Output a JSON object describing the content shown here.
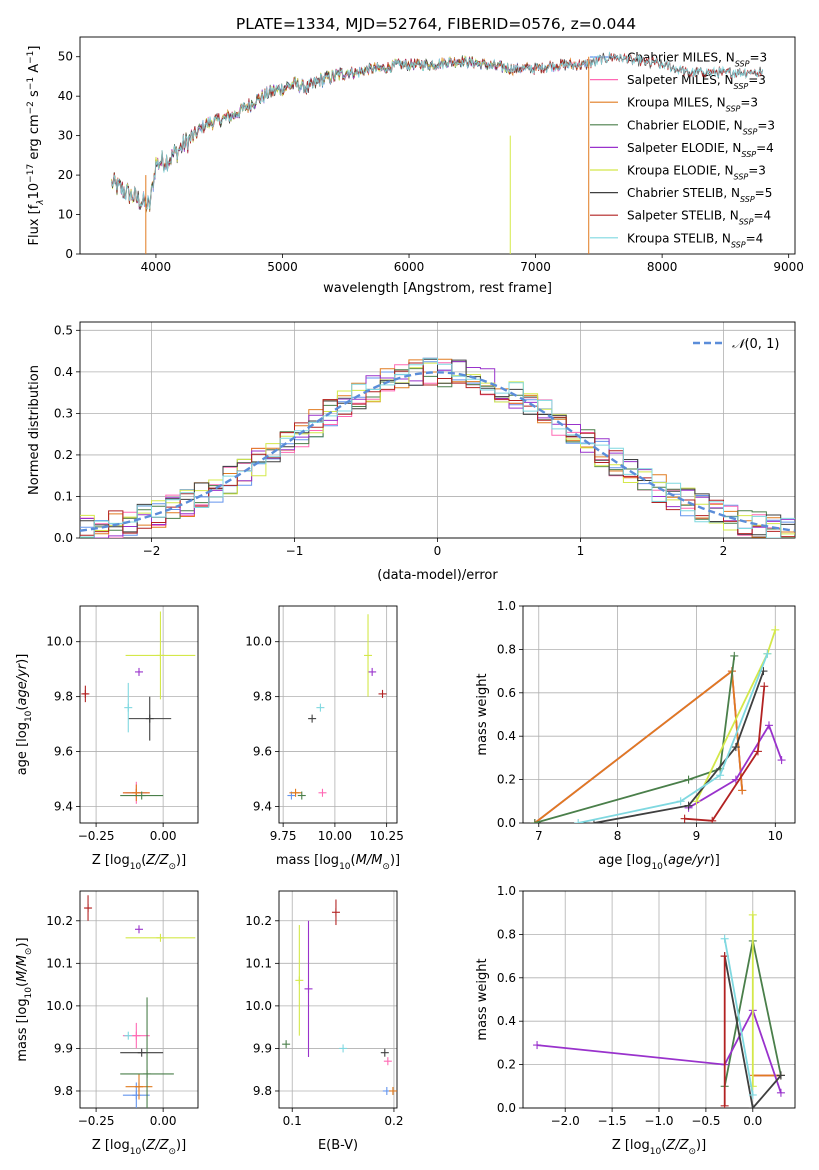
{
  "figure": {
    "title": "PLATE=1334, MJD=52764, FIBERID=0576, z=0.044"
  },
  "colors": {
    "Chabrier MILES": "#6495ed",
    "Salpeter MILES": "#ff69b4",
    "Kroupa MILES": "#e07b20",
    "Chabrier ELODIE": "#4a7f4a",
    "Salpeter ELODIE": "#9932cc",
    "Kroupa ELODIE": "#d4e84a",
    "Chabrier STELIB": "#3f3f3f",
    "Salpeter STELIB": "#b22222",
    "Kroupa STELIB": "#7fd8e0"
  },
  "chart_data": [
    {
      "id": "spectrum",
      "type": "line",
      "xlabel": "wavelength [Angstrom, rest frame]",
      "ylabel_parts": [
        "Flux [f",
        "λ",
        "10",
        "−17",
        " erg cm",
        "−2",
        " s",
        "−1",
        " A",
        "−1",
        "]"
      ],
      "xlim": [
        3400,
        9050
      ],
      "ylim": [
        0,
        55
      ],
      "xticks": [
        4000,
        5000,
        6000,
        7000,
        8000,
        9000
      ],
      "yticks": [
        0,
        10,
        20,
        30,
        40,
        50
      ],
      "continuum": {
        "x": [
          3650,
          3700,
          3750,
          3800,
          3850,
          3900,
          3950,
          4000,
          4100,
          4200,
          4300,
          4400,
          4500,
          4600,
          4700,
          4800,
          4900,
          5000,
          5100,
          5200,
          5300,
          5400,
          5500,
          5600,
          5700,
          5800,
          5900,
          6000,
          6200,
          6400,
          6600,
          6800,
          7000,
          7200,
          7400,
          7600,
          7800,
          8000,
          8200,
          8400,
          8600,
          8800
        ],
        "y": [
          18,
          17,
          16,
          15,
          14,
          13,
          12,
          23,
          24,
          27,
          30,
          33,
          34,
          35,
          37,
          39,
          41,
          42,
          43,
          42,
          44,
          45,
          46,
          46,
          47,
          47,
          48,
          48,
          48,
          49,
          48,
          47,
          47,
          48,
          48,
          50,
          49,
          48,
          46,
          46,
          46,
          46
        ]
      },
      "legend_position": "upper right",
      "series": [
        {
          "name": "Chabrier MILES",
          "nssp": "3",
          "xmax": 7400
        },
        {
          "name": "Salpeter MILES",
          "nssp": "3",
          "xmax": 7400
        },
        {
          "name": "Kroupa MILES",
          "nssp": "3",
          "xmax": 7400
        },
        {
          "name": "Chabrier ELODIE",
          "nssp": "3",
          "xmax": 6800
        },
        {
          "name": "Salpeter ELODIE",
          "nssp": "4",
          "xmax": 6800
        },
        {
          "name": "Kroupa ELODIE",
          "nssp": "3",
          "xmax": 6800
        },
        {
          "name": "Chabrier STELIB",
          "nssp": "5",
          "xmax": 8800
        },
        {
          "name": "Salpeter STELIB",
          "nssp": "4",
          "xmax": 8800
        },
        {
          "name": "Kroupa STELIB",
          "nssp": "4",
          "xmax": 8800
        }
      ],
      "dropouts": [
        {
          "x": 3920,
          "y": 20,
          "color": "Kroupa MILES"
        },
        {
          "x": 6800,
          "y": 30,
          "color": "Kroupa ELODIE"
        },
        {
          "x": 7420,
          "y": 50,
          "color": "Kroupa MILES"
        }
      ]
    },
    {
      "id": "residuals",
      "type": "histogram",
      "xlabel": "(data-model)/error",
      "ylabel": "Normed distribution",
      "xlim": [
        -2.5,
        2.5
      ],
      "ylim": [
        0,
        0.52
      ],
      "xticks": [
        -2,
        -1,
        0,
        1,
        2
      ],
      "yticks": [
        0,
        0.1,
        0.2,
        0.3,
        0.4,
        0.5
      ],
      "bin_width": 0.1,
      "gaussian": {
        "mean": 0,
        "sigma": 1
      },
      "legend": {
        "prefix": "𝒩",
        "suffix": "(0, 1)",
        "position": "upper right"
      }
    },
    {
      "id": "z-age",
      "type": "errorbar",
      "xlabel": "Z [log10(Z/Z⊙)]",
      "ylabel": "age  [log10(age/yr)]",
      "xlim": [
        -0.31,
        0.13
      ],
      "ylim": [
        9.34,
        10.13
      ],
      "xticks": [
        -0.25,
        0.0
      ],
      "xticklabels": [
        "−0.25",
        "0.00"
      ],
      "yticks": [
        9.4,
        9.6,
        9.8,
        10.0
      ],
      "points": [
        {
          "model": "Chabrier MILES",
          "x": -0.1,
          "y": 9.45,
          "xerr": 0.04,
          "yerr": 0.0
        },
        {
          "model": "Salpeter MILES",
          "x": -0.1,
          "y": 9.45,
          "xerr": 0.05,
          "yerr": 0.04
        },
        {
          "model": "Kroupa MILES",
          "x": -0.1,
          "y": 9.45,
          "xerr": 0.05,
          "yerr": 0.03
        },
        {
          "model": "Chabrier ELODIE",
          "x": -0.08,
          "y": 9.44,
          "xerr": 0.08,
          "yerr": 0.0
        },
        {
          "model": "Salpeter ELODIE",
          "x": -0.09,
          "y": 9.89,
          "xerr": 0.0,
          "yerr": 0.0
        },
        {
          "model": "Kroupa ELODIE",
          "x": -0.01,
          "y": 9.95,
          "xerr": 0.13,
          "yerr": 0.16
        },
        {
          "model": "Chabrier STELIB",
          "x": -0.05,
          "y": 9.72,
          "xerr": 0.08,
          "yerr": 0.08
        },
        {
          "model": "Salpeter STELIB",
          "x": -0.29,
          "y": 9.81,
          "xerr": 0.01,
          "yerr": 0.03
        },
        {
          "model": "Kroupa STELIB",
          "x": -0.13,
          "y": 9.76,
          "xerr": 0.0,
          "yerr": 0.09
        }
      ]
    },
    {
      "id": "mass-age",
      "type": "errorbar",
      "xlabel": "mass [log10(M/M⊙)]",
      "xlim": [
        9.73,
        10.3
      ],
      "ylim": [
        9.34,
        10.13
      ],
      "xticks": [
        9.75,
        10.0,
        10.25
      ],
      "xticklabels": [
        "9.75",
        "10.00",
        "10.25"
      ],
      "yticks": [
        9.4,
        9.6,
        9.8,
        10.0
      ],
      "points": [
        {
          "model": "Chabrier MILES",
          "x": 9.79,
          "y": 9.44,
          "xerr": 0.0,
          "yerr": 0.0
        },
        {
          "model": "Salpeter MILES",
          "x": 9.94,
          "y": 9.45,
          "xerr": 0.0,
          "yerr": 0.0
        },
        {
          "model": "Kroupa MILES",
          "x": 9.81,
          "y": 9.45,
          "xerr": 0.03,
          "yerr": 0.0
        },
        {
          "model": "Chabrier ELODIE",
          "x": 9.84,
          "y": 9.44,
          "xerr": 0.0,
          "yerr": 0.0
        },
        {
          "model": "Salpeter ELODIE",
          "x": 10.18,
          "y": 9.89,
          "xerr": 0.0,
          "yerr": 0.0
        },
        {
          "model": "Kroupa ELODIE",
          "x": 10.16,
          "y": 9.95,
          "xerr": 0.0,
          "yerr": 0.15
        },
        {
          "model": "Chabrier STELIB",
          "x": 9.89,
          "y": 9.72,
          "xerr": 0.0,
          "yerr": 0.0
        },
        {
          "model": "Salpeter STELIB",
          "x": 10.23,
          "y": 9.81,
          "xerr": 0.0,
          "yerr": 0.0
        },
        {
          "model": "Kroupa STELIB",
          "x": 9.93,
          "y": 9.76,
          "xerr": 0.0,
          "yerr": 0.0
        }
      ]
    },
    {
      "id": "age-weight",
      "type": "line",
      "xlabel": "age  [log10(age/yr)]",
      "ylabel": "mass weight",
      "xlim": [
        6.8,
        10.25
      ],
      "ylim": [
        0,
        1
      ],
      "xticks": [
        7,
        8,
        9,
        10
      ],
      "yticks": [
        0,
        0.2,
        0.4,
        0.6,
        0.8,
        1.0
      ],
      "series": [
        {
          "model": "Chabrier MILES",
          "x": [
            6.95,
            9.45,
            9.58
          ],
          "y": [
            0.0,
            0.7,
            0.15
          ]
        },
        {
          "model": "Salpeter MILES",
          "x": [
            6.95,
            9.45,
            9.58
          ],
          "y": [
            0.0,
            0.7,
            0.15
          ]
        },
        {
          "model": "Kroupa MILES",
          "x": [
            6.95,
            9.45,
            9.58
          ],
          "y": [
            0.0,
            0.7,
            0.15
          ]
        },
        {
          "model": "Chabrier ELODIE",
          "x": [
            6.95,
            8.9,
            9.3,
            9.48
          ],
          "y": [
            0.0,
            0.2,
            0.25,
            0.77
          ]
        },
        {
          "model": "Salpeter ELODIE",
          "x": [
            8.9,
            9.5,
            9.92,
            10.08
          ],
          "y": [
            0.07,
            0.2,
            0.45,
            0.29
          ]
        },
        {
          "model": "Kroupa ELODIE",
          "x": [
            9.0,
            9.9,
            10.0
          ],
          "y": [
            0.1,
            0.78,
            0.89
          ]
        },
        {
          "model": "Chabrier STELIB",
          "x": [
            7.7,
            8.9,
            9.5,
            9.85
          ],
          "y": [
            0.0,
            0.08,
            0.35,
            0.7
          ]
        },
        {
          "model": "Salpeter STELIB",
          "x": [
            8.85,
            9.2,
            9.78,
            9.86
          ],
          "y": [
            0.02,
            0.01,
            0.33,
            0.63
          ]
        },
        {
          "model": "Kroupa STELIB",
          "x": [
            7.5,
            8.8,
            9.3,
            9.9
          ],
          "y": [
            0.0,
            0.1,
            0.22,
            0.78
          ]
        }
      ]
    },
    {
      "id": "z-mass",
      "type": "errorbar",
      "xlabel": "Z [log10(Z/Z⊙)]",
      "ylabel": "mass [log10(M/M⊙)]",
      "xlim": [
        -0.31,
        0.13
      ],
      "ylim": [
        9.76,
        10.27
      ],
      "xticks": [
        -0.25,
        0.0
      ],
      "xticklabels": [
        "−0.25",
        "0.00"
      ],
      "yticks": [
        9.8,
        9.9,
        10.0,
        10.1,
        10.2
      ],
      "points": [
        {
          "model": "Chabrier MILES",
          "x": -0.1,
          "y": 9.79,
          "xerr": 0.05,
          "yerr": 0.03
        },
        {
          "model": "Salpeter MILES",
          "x": -0.1,
          "y": 9.93,
          "xerr": 0.05,
          "yerr": 0.03
        },
        {
          "model": "Kroupa MILES",
          "x": -0.09,
          "y": 9.81,
          "xerr": 0.05,
          "yerr": 0.03
        },
        {
          "model": "Chabrier ELODIE",
          "x": -0.06,
          "y": 9.84,
          "xerr": 0.1,
          "yerr": 0.18
        },
        {
          "model": "Salpeter ELODIE",
          "x": -0.09,
          "y": 10.18,
          "xerr": 0.0,
          "yerr": 0.0
        },
        {
          "model": "Kroupa ELODIE",
          "x": -0.01,
          "y": 10.16,
          "xerr": 0.13,
          "yerr": 0.0
        },
        {
          "model": "Chabrier STELIB",
          "x": -0.08,
          "y": 9.89,
          "xerr": 0.08,
          "yerr": 0.0
        },
        {
          "model": "Salpeter STELIB",
          "x": -0.28,
          "y": 10.23,
          "xerr": 0.01,
          "yerr": 0.03
        },
        {
          "model": "Kroupa STELIB",
          "x": -0.13,
          "y": 9.93,
          "xerr": 0.0,
          "yerr": 0.0
        }
      ]
    },
    {
      "id": "ebv-mass",
      "type": "errorbar",
      "xlabel": "E(B-V)",
      "xlim": [
        0.087,
        0.203
      ],
      "ylim": [
        9.76,
        10.27
      ],
      "xticks": [
        0.1,
        0.2
      ],
      "yticks": [
        9.8,
        9.9,
        10.0,
        10.1,
        10.2
      ],
      "points": [
        {
          "model": "Chabrier MILES",
          "x": 0.193,
          "y": 9.8,
          "xerr": 0.0,
          "yerr": 0.0
        },
        {
          "model": "Salpeter MILES",
          "x": 0.194,
          "y": 9.87,
          "xerr": 0.0,
          "yerr": 0.0
        },
        {
          "model": "Kroupa MILES",
          "x": 0.199,
          "y": 9.8,
          "xerr": 0.0,
          "yerr": 0.0
        },
        {
          "model": "Chabrier ELODIE",
          "x": 0.094,
          "y": 9.91,
          "xerr": 0.0,
          "yerr": 0.0
        },
        {
          "model": "Salpeter ELODIE",
          "x": 0.116,
          "y": 10.04,
          "xerr": 0.0,
          "yerr": 0.16
        },
        {
          "model": "Kroupa ELODIE",
          "x": 0.107,
          "y": 10.06,
          "xerr": 0.0,
          "yerr": 0.13
        },
        {
          "model": "Chabrier STELIB",
          "x": 0.191,
          "y": 9.89,
          "xerr": 0.0,
          "yerr": 0.0
        },
        {
          "model": "Salpeter STELIB",
          "x": 0.143,
          "y": 10.22,
          "xerr": 0.0,
          "yerr": 0.03
        },
        {
          "model": "Kroupa STELIB",
          "x": 0.15,
          "y": 9.9,
          "xerr": 0.0,
          "yerr": 0.0
        }
      ]
    },
    {
      "id": "z-weight",
      "type": "line",
      "xlabel": "Z [log10(Z/Z⊙)]",
      "ylabel": "mass weight",
      "xlim": [
        -2.45,
        0.45
      ],
      "ylim": [
        0,
        1
      ],
      "xticks": [
        -2.0,
        -1.5,
        -1.0,
        -0.5,
        0.0
      ],
      "xticklabels": [
        "−2.0",
        "−1.5",
        "−1.0",
        "−0.5",
        "0.0"
      ],
      "yticks": [
        0,
        0.2,
        0.4,
        0.6,
        0.8,
        1.0
      ],
      "series": [
        {
          "model": "Chabrier MILES",
          "x": [
            0.0,
            0.3
          ],
          "y": [
            0.15,
            0.15
          ]
        },
        {
          "model": "Salpeter MILES",
          "x": [
            0.0,
            0.3
          ],
          "y": [
            0.15,
            0.15
          ]
        },
        {
          "model": "Kroupa MILES",
          "x": [
            0.0,
            0.3
          ],
          "y": [
            0.15,
            0.15
          ]
        },
        {
          "model": "Chabrier ELODIE",
          "x": [
            -0.3,
            0.0,
            0.3
          ],
          "y": [
            0.1,
            0.77,
            0.15
          ]
        },
        {
          "model": "Salpeter ELODIE",
          "x": [
            -2.3,
            -0.3,
            0.0,
            0.3
          ],
          "y": [
            0.29,
            0.2,
            0.45,
            0.07
          ]
        },
        {
          "model": "Kroupa ELODIE",
          "x": [
            0.0,
            0.0
          ],
          "y": [
            0.89,
            0.1
          ]
        },
        {
          "model": "Chabrier STELIB",
          "x": [
            -0.3,
            0.0,
            0.3
          ],
          "y": [
            0.7,
            0.0,
            0.15
          ]
        },
        {
          "model": "Salpeter STELIB",
          "x": [
            -0.3,
            -0.3
          ],
          "y": [
            0.01,
            0.7
          ]
        },
        {
          "model": "Kroupa STELIB",
          "x": [
            -0.3,
            0.0
          ],
          "y": [
            0.78,
            0.06
          ]
        }
      ]
    }
  ]
}
